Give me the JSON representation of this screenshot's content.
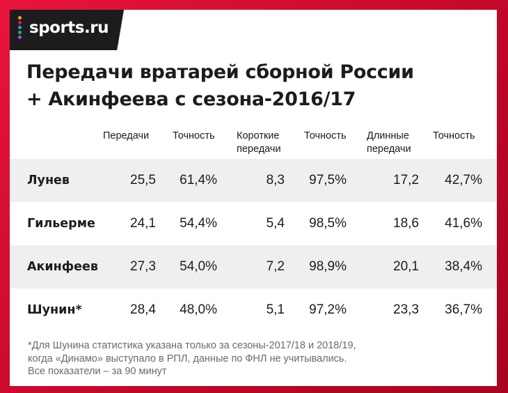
{
  "brand": {
    "name": "sports.ru",
    "mark_colors": [
      "#f5a623",
      "#e8143c",
      "#2d9cdb",
      "#27ae60",
      "#9b51e0"
    ]
  },
  "title": {
    "line1": "Передачи вратарей сборной России",
    "line2": "+ Акинфеева с сезона-2016/17"
  },
  "table": {
    "headers": [
      {
        "line1": "Передачи",
        "line2": ""
      },
      {
        "line1": "Точность",
        "line2": ""
      },
      {
        "line1": "Короткие",
        "line2": "передачи"
      },
      {
        "line1": "Точность",
        "line2": ""
      },
      {
        "line1": "Длинные",
        "line2": "передачи"
      },
      {
        "line1": "Точность",
        "line2": ""
      }
    ],
    "rows": [
      {
        "name": "Лунев",
        "values": [
          "25,5",
          "61,4%",
          "8,3",
          "97,5%",
          "17,2",
          "42,7%"
        ]
      },
      {
        "name": "Гильерме",
        "values": [
          "24,1",
          "54,4%",
          "5,4",
          "98,5%",
          "18,6",
          "41,6%"
        ]
      },
      {
        "name": "Акинфеев",
        "values": [
          "27,3",
          "54,0%",
          "7,2",
          "98,9%",
          "20,1",
          "38,4%"
        ]
      },
      {
        "name": "Шунин*",
        "values": [
          "28,4",
          "48,0%",
          "5,1",
          "97,2%",
          "23,3",
          "36,7%"
        ]
      }
    ],
    "row_shade": "#efefef"
  },
  "footnote": {
    "line1": "*Для Шунина статистика указана только за сезоны-2017/18 и 2018/19,",
    "line2": "когда «Динамо» выступало в РПЛ, данные по ФНЛ не учитывались.",
    "note": "Все показатели – за 90 минут"
  },
  "colors": {
    "background_red": "#e8143c",
    "text": "#1c1c1e",
    "muted": "#6a6a6a"
  }
}
